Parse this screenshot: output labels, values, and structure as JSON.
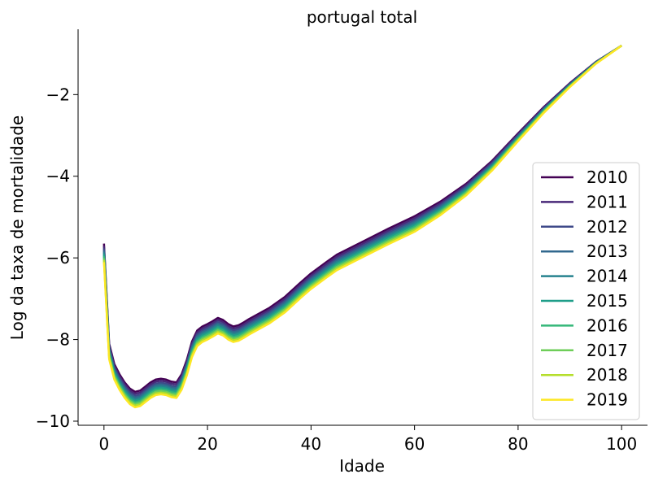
{
  "chart_data": {
    "type": "line",
    "title": "portugal total",
    "xlabel": "Idade",
    "ylabel": "Log da taxa de mortalidade",
    "xlim": [
      -5,
      105
    ],
    "ylim": [
      -10.1,
      -0.4
    ],
    "xticks": [
      0,
      20,
      40,
      60,
      80,
      100
    ],
    "yticks": [
      -10,
      -8,
      -6,
      -4,
      -2
    ],
    "xtick_labels": [
      "0",
      "20",
      "40",
      "60",
      "80",
      "100"
    ],
    "ytick_labels": [
      "−10",
      "−8",
      "−6",
      "−4",
      "−2"
    ],
    "grid": false,
    "legend": "center-right",
    "base_curve": {
      "x": [
        0,
        1,
        2,
        3,
        4,
        5,
        6,
        7,
        8,
        9,
        10,
        11,
        12,
        13,
        14,
        15,
        16,
        17,
        18,
        19,
        20,
        21,
        22,
        23,
        24,
        25,
        26,
        27,
        28,
        29,
        30,
        32,
        35,
        38,
        40,
        43,
        45,
        50,
        55,
        60,
        65,
        70,
        75,
        80,
        85,
        90,
        95,
        100
      ],
      "y": [
        -5.65,
        -8.1,
        -8.6,
        -8.85,
        -9.05,
        -9.2,
        -9.28,
        -9.25,
        -9.15,
        -9.05,
        -8.98,
        -8.96,
        -8.98,
        -9.03,
        -9.05,
        -8.85,
        -8.5,
        -8.05,
        -7.78,
        -7.68,
        -7.62,
        -7.55,
        -7.47,
        -7.52,
        -7.62,
        -7.68,
        -7.65,
        -7.58,
        -7.5,
        -7.43,
        -7.36,
        -7.22,
        -6.95,
        -6.6,
        -6.38,
        -6.1,
        -5.92,
        -5.6,
        -5.28,
        -4.98,
        -4.62,
        -4.18,
        -3.62,
        -2.95,
        -2.3,
        -1.72,
        -1.2,
        -0.8
      ]
    },
    "series": [
      {
        "name": "2010",
        "color": "#440154",
        "offset": 0.0
      },
      {
        "name": "2011",
        "color": "#482878",
        "offset": -0.05
      },
      {
        "name": "2012",
        "color": "#3e4989",
        "offset": -0.1
      },
      {
        "name": "2013",
        "color": "#31688e",
        "offset": -0.14
      },
      {
        "name": "2014",
        "color": "#26828e",
        "offset": -0.18
      },
      {
        "name": "2015",
        "color": "#1f9e89",
        "offset": -0.22
      },
      {
        "name": "2016",
        "color": "#35b779",
        "offset": -0.26
      },
      {
        "name": "2017",
        "color": "#6ece58",
        "offset": -0.3
      },
      {
        "name": "2018",
        "color": "#b5de2b",
        "offset": -0.34
      },
      {
        "name": "2019",
        "color": "#fde725",
        "offset": -0.38
      }
    ]
  }
}
